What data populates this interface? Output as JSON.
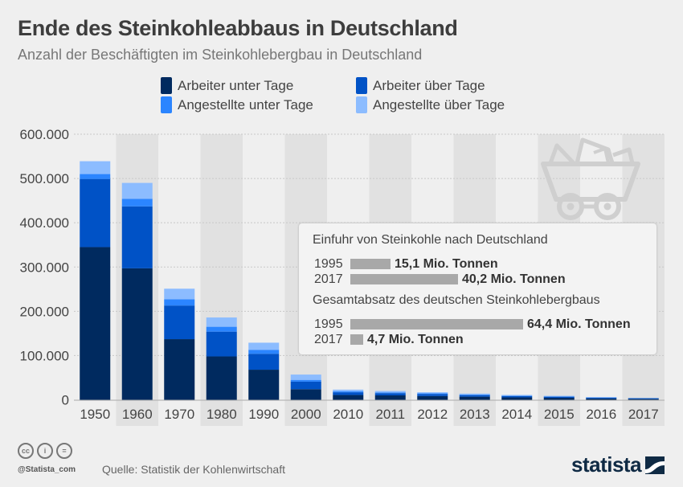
{
  "header": {
    "title": "Ende des Steinkohleabbaus in Deutschland",
    "subtitle": "Anzahl der Beschäftigten im Steinkohlebergbau in Deutschland"
  },
  "colors": {
    "arbeiter_unter": "#002a5f",
    "arbeiter_ueber": "#0052c6",
    "angestellte_unter": "#2b85ff",
    "angestellte_ueber": "#8cbcff",
    "stripe": "#e1e1e1",
    "grid": "#c8c8c8",
    "icon": "#cfcfcf"
  },
  "chart_data": {
    "type": "bar",
    "stacked": true,
    "title": "Ende des Steinkohleabbaus in Deutschland",
    "subtitle": "Anzahl der Beschäftigten im Steinkohlebergbau in Deutschland",
    "xlabel": "",
    "ylabel": "",
    "ylim": [
      0,
      600000
    ],
    "yticks": [
      0,
      100000,
      200000,
      300000,
      400000,
      500000,
      600000
    ],
    "ytick_labels": [
      "0",
      "100.000",
      "200.000",
      "300.000",
      "400.000",
      "500.000",
      "600.000"
    ],
    "grid": true,
    "legend_position": "top-center",
    "categories": [
      "1950",
      "1960",
      "1970",
      "1980",
      "1990",
      "2000",
      "2010",
      "2011",
      "2012",
      "2013",
      "2014",
      "2015",
      "2016",
      "2017"
    ],
    "series": [
      {
        "name": "Arbeiter unter Tage",
        "color_key": "arbeiter_unter",
        "values": [
          345000,
          297000,
          137000,
          98000,
          68000,
          24000,
          11000,
          10000,
          8500,
          7000,
          5500,
          4500,
          3000,
          2000
        ]
      },
      {
        "name": "Arbeiter über Tage",
        "color_key": "arbeiter_ueber",
        "values": [
          154000,
          140000,
          76000,
          56000,
          36000,
          17000,
          6000,
          5000,
          4500,
          3500,
          3000,
          2500,
          2000,
          1500
        ]
      },
      {
        "name": "Angestellte unter Tage",
        "color_key": "angestellte_unter",
        "values": [
          11000,
          17000,
          14000,
          11000,
          9000,
          4000,
          2000,
          1800,
          1500,
          1200,
          1000,
          800,
          500,
          300
        ]
      },
      {
        "name": "Angestellte über Tage",
        "color_key": "angestellte_ueber",
        "values": [
          29000,
          36000,
          24000,
          21000,
          16000,
          12000,
          4000,
          3200,
          2500,
          2300,
          1500,
          1200,
          500,
          200
        ]
      }
    ]
  },
  "legend": [
    {
      "label": "Arbeiter unter Tage",
      "color_key": "arbeiter_unter"
    },
    {
      "label": "Arbeiter über Tage",
      "color_key": "arbeiter_ueber"
    },
    {
      "label": "Angestellte unter Tage",
      "color_key": "angestellte_unter"
    },
    {
      "label": "Angestellte über Tage",
      "color_key": "angestellte_ueber"
    }
  ],
  "info_box": {
    "section1": {
      "heading": "Einfuhr von Steinkohle nach Deutschland",
      "rows": [
        {
          "year": "1995",
          "value": 15.1,
          "label": "15,1 Mio. Tonnen"
        },
        {
          "year": "2017",
          "value": 40.2,
          "label": "40,2 Mio. Tonnen"
        }
      ]
    },
    "section2": {
      "heading": "Gesamtabsatz des deutschen Steinkohlebergbaus",
      "rows": [
        {
          "year": "1995",
          "value": 64.4,
          "label": "64,4 Mio. Tonnen"
        },
        {
          "year": "2017",
          "value": 4.7,
          "label": "4,7 Mio. Tonnen"
        }
      ]
    },
    "scale_max": 64.4
  },
  "icons": {
    "decor": "mining-cart-icon",
    "license": [
      "cc-icon",
      "by-icon",
      "nd-icon"
    ]
  },
  "footer": {
    "cc_label": "cc",
    "by_label": "i",
    "nd_label": "=",
    "handle": "@Statista_com",
    "source": "Quelle: Statistik der Kohlenwirtschaft",
    "brand": "statista"
  }
}
